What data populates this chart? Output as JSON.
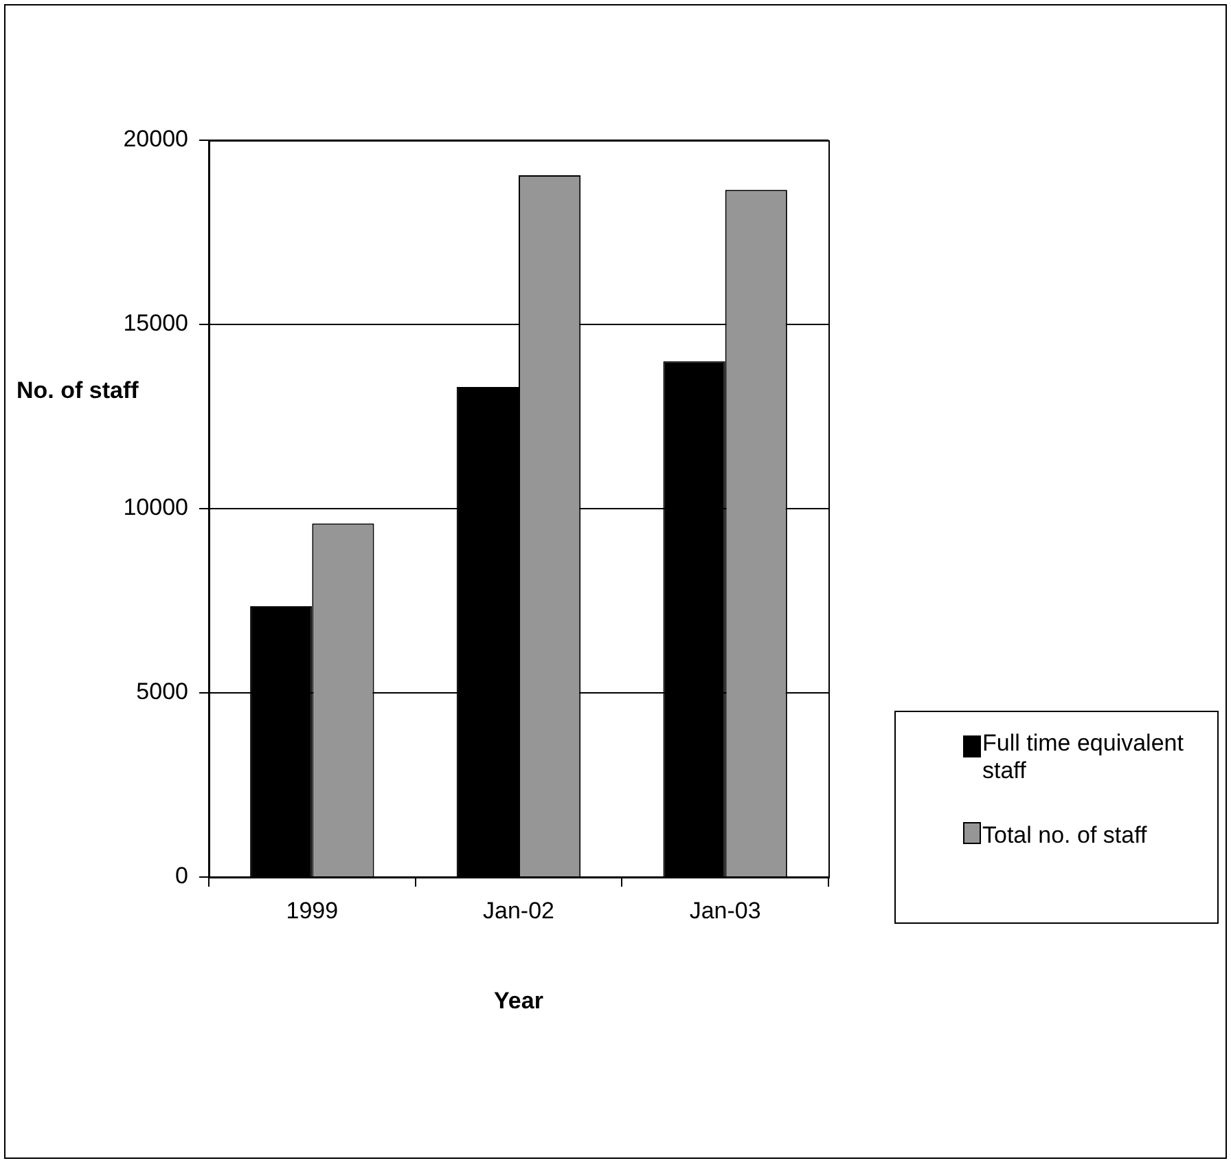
{
  "chart_data": {
    "type": "bar",
    "xlabel": "Year",
    "ylabel": "No. of staff",
    "categories": [
      "1999",
      "Jan-02",
      "Jan-03"
    ],
    "series": [
      {
        "name": "Full time equivalent staff",
        "color": "#000000",
        "values": [
          7350,
          13300,
          14000
        ]
      },
      {
        "name": "Total no. of staff",
        "color": "#969696",
        "values": [
          9600,
          19050,
          18650
        ]
      }
    ],
    "ylim": [
      0,
      20000
    ],
    "yticks": [
      0,
      5000,
      10000,
      15000,
      20000
    ],
    "grid": "y",
    "legend": "right"
  }
}
